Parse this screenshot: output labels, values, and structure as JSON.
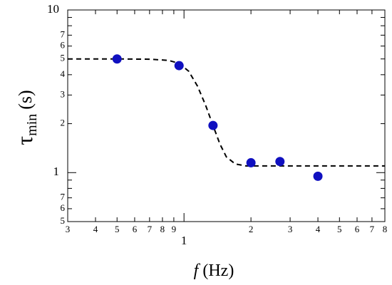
{
  "chart_data": {
    "type": "scatter",
    "xlabel": [
      "f",
      "(Hz)"
    ],
    "ylabel": [
      "τ",
      "min",
      "(s)"
    ],
    "log_x": true,
    "log_y": true,
    "xlim": [
      0.3,
      8
    ],
    "ylim": [
      0.5,
      10
    ],
    "xticks": [
      {
        "value": 0.3,
        "label": "3"
      },
      {
        "value": 0.4,
        "label": "4"
      },
      {
        "value": 0.5,
        "label": "5"
      },
      {
        "value": 0.6,
        "label": "6"
      },
      {
        "value": 0.7,
        "label": "7"
      },
      {
        "value": 0.8,
        "label": "8"
      },
      {
        "value": 0.9,
        "label": "9"
      },
      1,
      2,
      3,
      4,
      5,
      6,
      7,
      8
    ],
    "yticks": [
      {
        "value": 0.5,
        "label": "5"
      },
      {
        "value": 0.6,
        "label": "6"
      },
      {
        "value": 0.7,
        "label": "7"
      },
      1,
      2,
      3,
      4,
      5,
      6,
      7,
      10
    ],
    "yminorticks": [
      0.8,
      0.9,
      8,
      9
    ],
    "series": [
      {
        "kind": "points",
        "color": "#1010c0",
        "x": [
          0.5,
          0.95,
          1.35,
          2.0,
          2.7,
          4.0
        ],
        "y": [
          5.0,
          4.55,
          1.95,
          1.15,
          1.17,
          0.95
        ]
      },
      {
        "kind": "dashed-line",
        "color": "#000000",
        "x": [
          0.3,
          0.5,
          0.7,
          0.85,
          0.95,
          1.05,
          1.15,
          1.25,
          1.35,
          1.45,
          1.55,
          1.7,
          1.9,
          2.2,
          3,
          5,
          8
        ],
        "y": [
          5.0,
          5.0,
          4.98,
          4.9,
          4.7,
          4.2,
          3.4,
          2.6,
          1.95,
          1.5,
          1.25,
          1.13,
          1.1,
          1.1,
          1.1,
          1.1,
          1.1
        ]
      }
    ]
  }
}
